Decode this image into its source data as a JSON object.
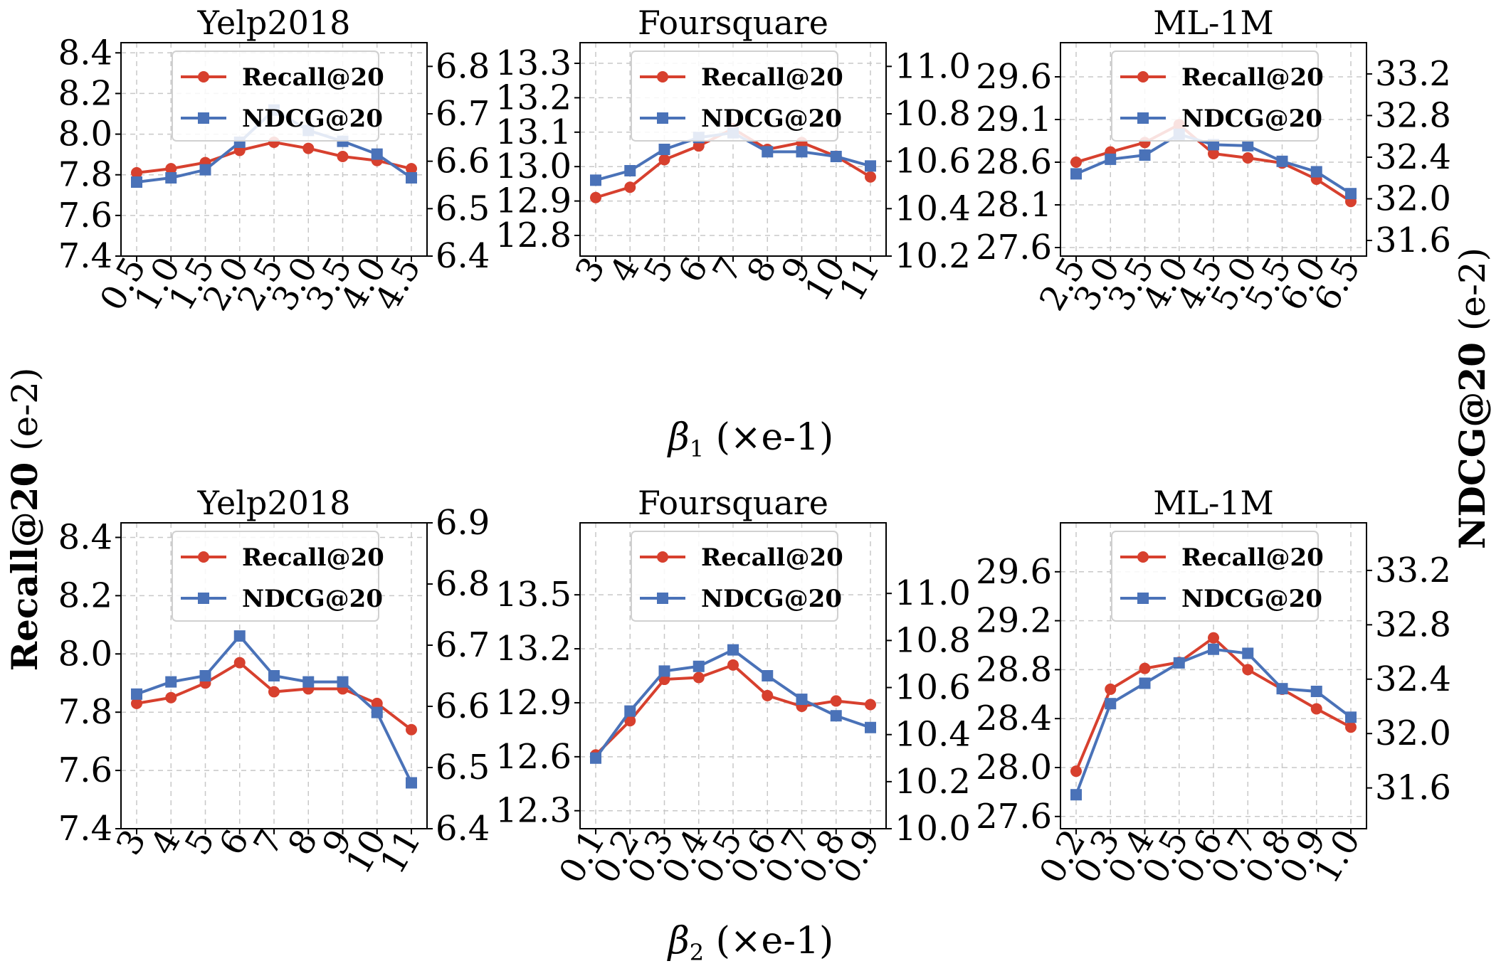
{
  "colors": {
    "recall": "#d7402e",
    "ndcg": "#4a72b8"
  },
  "figure": {
    "left_ylabel_main": "Recall@20",
    "left_ylabel_suffix": " (e-2)",
    "right_ylabel_main": "NDCG@20",
    "right_ylabel_suffix": " (e-2)",
    "xlabel_beta1_sym": "β",
    "xlabel_beta1_sub": "1",
    "xlabel_beta1_unit": " (×e-1)",
    "xlabel_beta2_sym": "β",
    "xlabel_beta2_sub": "2",
    "xlabel_beta2_unit": " (×e-1)"
  },
  "chart_data": [
    {
      "type": "line",
      "title": "Yelp2018",
      "xlabel": "β1 (×e-1)",
      "categories": [
        "0.5",
        "1.0",
        "1.5",
        "2.0",
        "2.5",
        "3.0",
        "3.5",
        "4.0",
        "4.5"
      ],
      "ylim_left": [
        7.4,
        8.45
      ],
      "ylim_right": [
        6.4,
        6.85
      ],
      "yticks_left": [
        "7.4",
        "7.6",
        "7.8",
        "8.0",
        "8.2",
        "8.4"
      ],
      "yticks_right": [
        "6.4",
        "6.5",
        "6.6",
        "6.7",
        "6.8"
      ],
      "legend": [
        "Recall@20",
        "NDCG@20"
      ],
      "series": [
        {
          "name": "Recall@20",
          "axis": "left",
          "values": [
            7.81,
            7.83,
            7.86,
            7.92,
            7.96,
            7.93,
            7.89,
            7.87,
            7.83
          ]
        },
        {
          "name": "NDCG@20",
          "axis": "right",
          "values": [
            6.556,
            6.565,
            6.582,
            6.64,
            6.708,
            6.665,
            6.642,
            6.615,
            6.565
          ]
        }
      ]
    },
    {
      "type": "line",
      "title": "Foursquare",
      "xlabel": "β1 (×e-1)",
      "categories": [
        "3",
        "4",
        "5",
        "6",
        "7",
        "8",
        "9",
        "10",
        "11"
      ],
      "ylim_left": [
        12.74,
        13.36
      ],
      "ylim_right": [
        10.2,
        11.1
      ],
      "yticks_left": [
        "12.8",
        "12.9",
        "13.0",
        "13.1",
        "13.2",
        "13.3"
      ],
      "yticks_right": [
        "10.2",
        "10.4",
        "10.6",
        "10.8",
        "11.0"
      ],
      "legend": [
        "Recall@20",
        "NDCG@20"
      ],
      "series": [
        {
          "name": "Recall@20",
          "axis": "left",
          "values": [
            12.91,
            12.94,
            13.02,
            13.06,
            13.11,
            13.05,
            13.07,
            13.03,
            12.97
          ]
        },
        {
          "name": "NDCG@20",
          "axis": "right",
          "values": [
            10.52,
            10.56,
            10.65,
            10.7,
            10.72,
            10.64,
            10.64,
            10.62,
            10.58
          ]
        }
      ]
    },
    {
      "type": "line",
      "title": "ML-1M",
      "xlabel": "β1 (×e-1)",
      "categories": [
        "2.5",
        "3.0",
        "3.5",
        "4.0",
        "4.5",
        "5.0",
        "5.5",
        "6.0",
        "6.5"
      ],
      "ylim_left": [
        27.5,
        30.0
      ],
      "ylim_right": [
        31.45,
        33.5
      ],
      "yticks_left": [
        "27.6",
        "28.1",
        "28.6",
        "29.1",
        "29.6"
      ],
      "yticks_right": [
        "31.6",
        "32.0",
        "32.4",
        "32.8",
        "33.2"
      ],
      "legend": [
        "Recall@20",
        "NDCG@20"
      ],
      "series": [
        {
          "name": "Recall@20",
          "axis": "left",
          "values": [
            28.6,
            28.72,
            28.83,
            29.04,
            28.7,
            28.65,
            28.59,
            28.4,
            28.14
          ]
        },
        {
          "name": "NDCG@20",
          "axis": "right",
          "values": [
            32.24,
            32.38,
            32.42,
            32.62,
            32.52,
            32.51,
            32.36,
            32.26,
            32.05
          ]
        }
      ]
    },
    {
      "type": "line",
      "title": "Yelp2018",
      "xlabel": "β2 (×e-1)",
      "categories": [
        "3",
        "4",
        "5",
        "6",
        "7",
        "8",
        "9",
        "10",
        "11"
      ],
      "ylim_left": [
        7.4,
        8.45
      ],
      "ylim_right": [
        6.4,
        6.9
      ],
      "yticks_left": [
        "7.4",
        "7.6",
        "7.8",
        "8.0",
        "8.2",
        "8.4"
      ],
      "yticks_right": [
        "6.4",
        "6.5",
        "6.6",
        "6.7",
        "6.8",
        "6.9"
      ],
      "legend": [
        "Recall@20",
        "NDCG@20"
      ],
      "series": [
        {
          "name": "Recall@20",
          "axis": "left",
          "values": [
            7.83,
            7.85,
            7.9,
            7.97,
            7.87,
            7.88,
            7.88,
            7.83,
            7.74
          ]
        },
        {
          "name": "NDCG@20",
          "axis": "right",
          "values": [
            6.62,
            6.64,
            6.65,
            6.715,
            6.65,
            6.64,
            6.64,
            6.59,
            6.475
          ]
        }
      ]
    },
    {
      "type": "line",
      "title": "Foursquare",
      "xlabel": "β2 (×e-1)",
      "categories": [
        "0.1",
        "0.2",
        "0.3",
        "0.4",
        "0.5",
        "0.6",
        "0.7",
        "0.8",
        "0.9"
      ],
      "ylim_left": [
        12.2,
        13.9
      ],
      "ylim_right": [
        10.0,
        11.3
      ],
      "yticks_left": [
        "12.3",
        "12.6",
        "12.9",
        "13.2",
        "13.5"
      ],
      "yticks_right": [
        "10.0",
        "10.2",
        "10.4",
        "10.6",
        "10.8",
        "11.0"
      ],
      "legend": [
        "Recall@20",
        "NDCG@20"
      ],
      "series": [
        {
          "name": "Recall@20",
          "axis": "left",
          "values": [
            12.61,
            12.8,
            13.03,
            13.04,
            13.11,
            12.94,
            12.88,
            12.91,
            12.89
          ]
        },
        {
          "name": "NDCG@20",
          "axis": "right",
          "values": [
            10.3,
            10.5,
            10.67,
            10.69,
            10.76,
            10.65,
            10.55,
            10.48,
            10.43
          ]
        }
      ]
    },
    {
      "type": "line",
      "title": "ML-1M",
      "xlabel": "β2 (×e-1)",
      "categories": [
        "0.2",
        "0.3",
        "0.4",
        "0.5",
        "0.6",
        "0.7",
        "0.8",
        "0.9",
        "1.0"
      ],
      "ylim_left": [
        27.5,
        30.0
      ],
      "ylim_right": [
        31.3,
        33.55
      ],
      "yticks_left": [
        "27.6",
        "28.0",
        "28.4",
        "28.8",
        "29.2",
        "29.6"
      ],
      "yticks_right": [
        "31.6",
        "32.0",
        "32.4",
        "32.8",
        "33.2"
      ],
      "legend": [
        "Recall@20",
        "NDCG@20"
      ],
      "series": [
        {
          "name": "Recall@20",
          "axis": "left",
          "values": [
            27.97,
            28.64,
            28.81,
            28.86,
            29.06,
            28.8,
            28.64,
            28.48,
            28.33
          ]
        },
        {
          "name": "NDCG@20",
          "axis": "right",
          "values": [
            31.55,
            32.22,
            32.37,
            32.52,
            32.62,
            32.59,
            32.33,
            32.31,
            32.12
          ]
        }
      ]
    }
  ]
}
